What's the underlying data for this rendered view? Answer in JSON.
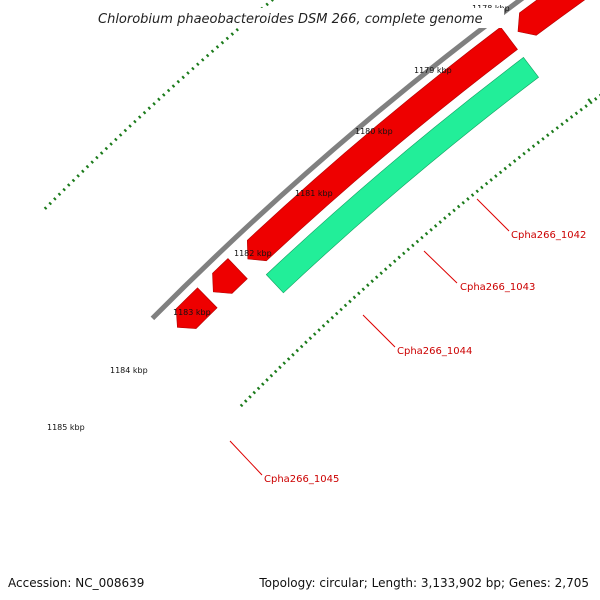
{
  "title": "Chlorobium phaeobacteroides DSM 266, complete genome",
  "footer": {
    "accession": "Accession: NC_008639",
    "summary": "Topology: circular; Length: 3,133,902 bp; Genes: 2,705"
  },
  "tick_labels": [
    "1178 kbp",
    "1179 kbp",
    "1180 kbp",
    "1181 kbp",
    "1182 kbp",
    "1183 kbp",
    "1184 kbp",
    "1185 kbp"
  ],
  "gene_labels": [
    "Cpha266_1042",
    "Cpha266_1043",
    "Cpha266_1044",
    "Cpha266_1045"
  ],
  "colors": {
    "backbone": "#808080",
    "cds": "#ee0000",
    "cds_dark": "#b00000",
    "feature_blue": "#4b3f8f",
    "feature_green": "#22ee99",
    "tick": "#1a7a1a",
    "leader": "#dd0000"
  }
}
